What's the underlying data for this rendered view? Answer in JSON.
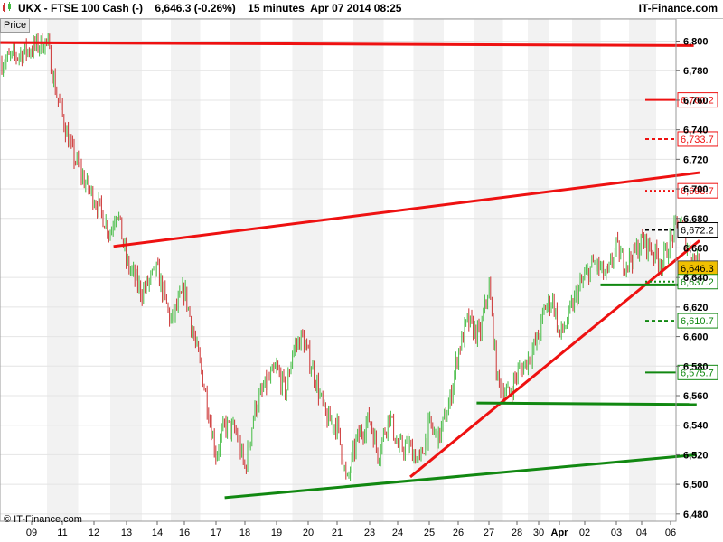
{
  "header": {
    "symbol": "UKX",
    "name": "FTSE 100 Cash (-)",
    "last": "6,646.3",
    "change": "(-0.26%)",
    "interval": "15 minutes",
    "datetime": "Apr 07 2014 08:25",
    "brand": "IT-Finance.com"
  },
  "price_tab": "Price",
  "footer": "© IT-Finance.com",
  "colors": {
    "resistance": "#ee1111",
    "support": "#118811",
    "candle_up": "#44bb44",
    "candle_down": "#cc3333",
    "current_bg": "#f0c000"
  },
  "chart_data": {
    "type": "candlestick",
    "title": "UKX - FTSE 100 Cash (-)",
    "interval": "15 minutes",
    "ylim": [
      6475,
      6815
    ],
    "y_ticks": [
      6480,
      6500,
      6520,
      6540,
      6560,
      6580,
      6600,
      6620,
      6640,
      6660,
      6680,
      6700,
      6720,
      6740,
      6760,
      6780,
      6800
    ],
    "y_tick_labels": [
      "6,480",
      "6,500",
      "6,520",
      "6,540",
      "6,560",
      "6,580",
      "6,600",
      "6,620",
      "6,640",
      "6,660",
      "6,680",
      "6,700",
      "6,720",
      "6,740",
      "6,760",
      "6,780",
      "6,800"
    ],
    "x_ticks": [
      "09",
      "11",
      "12",
      "13",
      "14",
      "16",
      "17",
      "18",
      "19",
      "20",
      "21",
      "23",
      "24",
      "25",
      "26",
      "27",
      "28",
      "30",
      "Apr",
      "02",
      "03",
      "04",
      "06"
    ],
    "price_path": [
      [
        0,
        6785
      ],
      [
        0.5,
        6800
      ],
      [
        0.8,
        6765
      ],
      [
        1.3,
        6725
      ],
      [
        1.7,
        6705
      ],
      [
        2.1,
        6690
      ],
      [
        2.5,
        6670
      ],
      [
        2.7,
        6688
      ],
      [
        3.0,
        6650
      ],
      [
        3.5,
        6630
      ],
      [
        4.0,
        6645
      ],
      [
        4.5,
        6610
      ],
      [
        5.0,
        6632
      ],
      [
        5.3,
        6600
      ],
      [
        5.6,
        6570
      ],
      [
        6.0,
        6520
      ],
      [
        6.3,
        6540
      ],
      [
        6.7,
        6535
      ],
      [
        7.0,
        6510
      ],
      [
        7.3,
        6550
      ],
      [
        7.6,
        6565
      ],
      [
        8.0,
        6578
      ],
      [
        8.3,
        6562
      ],
      [
        8.5,
        6590
      ],
      [
        8.8,
        6600
      ],
      [
        9.2,
        6575
      ],
      [
        9.6,
        6545
      ],
      [
        10.0,
        6540
      ],
      [
        10.3,
        6500
      ],
      [
        10.6,
        6530
      ],
      [
        11.0,
        6545
      ],
      [
        11.3,
        6520
      ],
      [
        11.7,
        6548
      ],
      [
        12.0,
        6525
      ],
      [
        12.4,
        6525
      ],
      [
        12.7,
        6515
      ],
      [
        13.0,
        6540
      ],
      [
        13.3,
        6530
      ],
      [
        13.7,
        6555
      ],
      [
        14.0,
        6590
      ],
      [
        14.3,
        6610
      ],
      [
        14.7,
        6600
      ],
      [
        15.0,
        6635
      ],
      [
        15.3,
        6570
      ],
      [
        15.7,
        6560
      ],
      [
        16.0,
        6575
      ],
      [
        16.3,
        6580
      ],
      [
        16.7,
        6590
      ],
      [
        17.0,
        6600
      ],
      [
        17.3,
        6620
      ],
      [
        17.7,
        6625
      ],
      [
        18.0,
        6600
      ],
      [
        18.3,
        6610
      ],
      [
        18.7,
        6630
      ],
      [
        19.0,
        6640
      ],
      [
        19.3,
        6650
      ],
      [
        19.7,
        6640
      ],
      [
        20.0,
        6660
      ],
      [
        20.3,
        6650
      ],
      [
        20.7,
        6655
      ],
      [
        21.0,
        6665
      ],
      [
        21.3,
        6660
      ],
      [
        21.7,
        6650
      ],
      [
        22.0,
        6665
      ],
      [
        22.3,
        6680
      ],
      [
        22.6,
        6660
      ],
      [
        22.9,
        6650
      ],
      [
        23.3,
        6640
      ]
    ],
    "levels": [
      {
        "label": "6,760.2",
        "value": 6760.2,
        "color": "#ee1111",
        "style": "solid"
      },
      {
        "label": "6,733.7",
        "value": 6733.7,
        "color": "#ee1111",
        "style": "dashed"
      },
      {
        "label": "6,698.7",
        "value": 6698.7,
        "color": "#ee1111",
        "style": "dotted"
      },
      {
        "label": "6,672.2",
        "value": 6672.2,
        "color": "#000000",
        "style": "dashed"
      },
      {
        "label": "6,646.3",
        "value": 6646.3,
        "color": "#000000",
        "style": "current"
      },
      {
        "label": "6,637.2",
        "value": 6637.2,
        "color": "#118811",
        "style": "dotted"
      },
      {
        "label": "6,610.7",
        "value": 6610.7,
        "color": "#118811",
        "style": "dashed"
      },
      {
        "label": "6,575.7",
        "value": 6575.7,
        "color": "#118811",
        "style": "solid"
      }
    ],
    "trendlines": [
      {
        "name": "resistance-top",
        "color": "#ee1111",
        "x1": 0,
        "y1": 6799,
        "x2": 22.8,
        "y2": 6797
      },
      {
        "name": "resistance-channel",
        "color": "#ee1111",
        "x1": 2.6,
        "y1": 6661,
        "x2": 23.0,
        "y2": 6711
      },
      {
        "name": "support-rising-red",
        "color": "#ee1111",
        "x1": 12.4,
        "y1": 6505,
        "x2": 23.0,
        "y2": 6665
      },
      {
        "name": "support-horizontal-upper",
        "color": "#118811",
        "x1": 19.5,
        "y1": 6635,
        "x2": 23.0,
        "y2": 6635
      },
      {
        "name": "support-horizontal-mid",
        "color": "#118811",
        "x1": 14.6,
        "y1": 6555,
        "x2": 22.9,
        "y2": 6554
      },
      {
        "name": "support-lower",
        "color": "#118811",
        "x1": 6.3,
        "y1": 6491,
        "x2": 22.9,
        "y2": 6520
      }
    ]
  }
}
